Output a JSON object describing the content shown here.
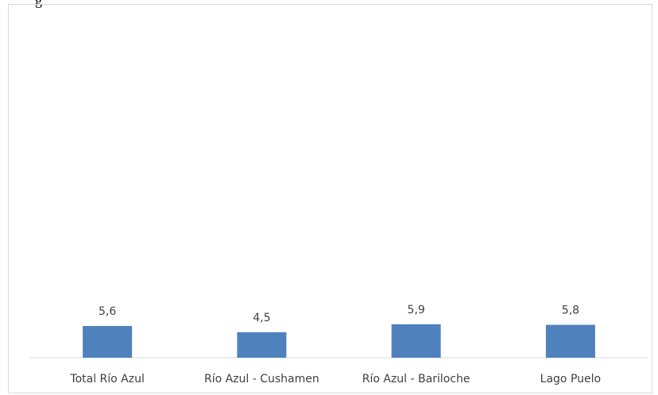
{
  "header": {
    "top_text": "g"
  },
  "chart_data": {
    "type": "bar",
    "categories": [
      "Total Río Azul",
      "Río Azul - Cushamen",
      "Río Azul - Bariloche",
      "Lago Puelo"
    ],
    "values": [
      5.6,
      4.5,
      5.9,
      5.8
    ],
    "value_labels": [
      "5,6",
      "4,5",
      "5,9",
      "5,8"
    ],
    "title": "",
    "xlabel": "",
    "ylabel": "",
    "ylim": [
      0,
      60
    ],
    "grid": false,
    "legend": "none",
    "colors": {
      "bar": "#4f81bd",
      "axis": "#d9d9d9",
      "text": "#404040"
    }
  }
}
